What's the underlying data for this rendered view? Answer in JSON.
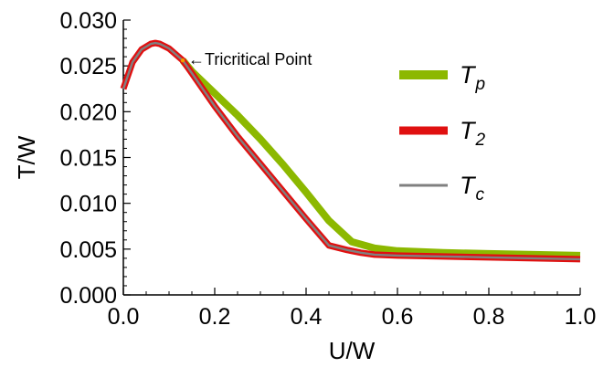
{
  "chart_data": {
    "type": "line",
    "xlabel": "U/W",
    "ylabel": "T/W",
    "xlim": [
      0.0,
      1.0
    ],
    "ylim": [
      0.0,
      0.03
    ],
    "xticks": [
      "0.0",
      "0.2",
      "0.4",
      "0.6",
      "0.8",
      "1.0"
    ],
    "yticks": [
      "0.000",
      "0.005",
      "0.010",
      "0.015",
      "0.020",
      "0.025",
      "0.030"
    ],
    "annotation": {
      "text": "←Tricritical Point",
      "x": 0.13,
      "y": 0.0256
    },
    "legend_position": "right",
    "series": [
      {
        "name": "T",
        "sub": "p",
        "color": "#8cb800",
        "x": [
          0.13,
          0.15,
          0.2,
          0.25,
          0.3,
          0.35,
          0.4,
          0.45,
          0.5,
          0.55,
          0.6,
          0.7,
          0.8,
          0.9,
          1.0
        ],
        "y": [
          0.0256,
          0.0244,
          0.022,
          0.0196,
          0.017,
          0.0142,
          0.0112,
          0.0081,
          0.0058,
          0.0051,
          0.0048,
          0.0046,
          0.0045,
          0.0044,
          0.0043
        ]
      },
      {
        "name": "T",
        "sub": "2",
        "color": "#e01010",
        "x": [
          0.0,
          0.02,
          0.04,
          0.06,
          0.07,
          0.08,
          0.1,
          0.13,
          0.15,
          0.2,
          0.25,
          0.3,
          0.35,
          0.4,
          0.45,
          0.49,
          0.52,
          0.55,
          0.6,
          0.7,
          0.8,
          0.9,
          1.0
        ],
        "y": [
          0.0225,
          0.0254,
          0.0268,
          0.0274,
          0.0275,
          0.0274,
          0.0269,
          0.0256,
          0.0242,
          0.0206,
          0.0173,
          0.0143,
          0.0113,
          0.0083,
          0.0054,
          0.0049,
          0.0046,
          0.0044,
          0.0043,
          0.0042,
          0.0041,
          0.004,
          0.0039
        ]
      },
      {
        "name": "T",
        "sub": "c",
        "color": "#808080",
        "x": [
          0.0,
          0.02,
          0.04,
          0.06,
          0.07,
          0.08,
          0.1,
          0.13,
          0.15,
          0.2,
          0.25,
          0.3,
          0.35,
          0.4,
          0.45,
          0.49,
          0.52,
          0.55,
          0.6,
          0.7,
          0.8,
          0.9,
          1.0
        ],
        "y": [
          0.0225,
          0.0254,
          0.0268,
          0.0274,
          0.0275,
          0.0274,
          0.0269,
          0.0256,
          0.0242,
          0.0206,
          0.0173,
          0.0143,
          0.0113,
          0.0083,
          0.0054,
          0.0049,
          0.0046,
          0.0044,
          0.0043,
          0.0042,
          0.0041,
          0.004,
          0.0039
        ]
      }
    ]
  }
}
